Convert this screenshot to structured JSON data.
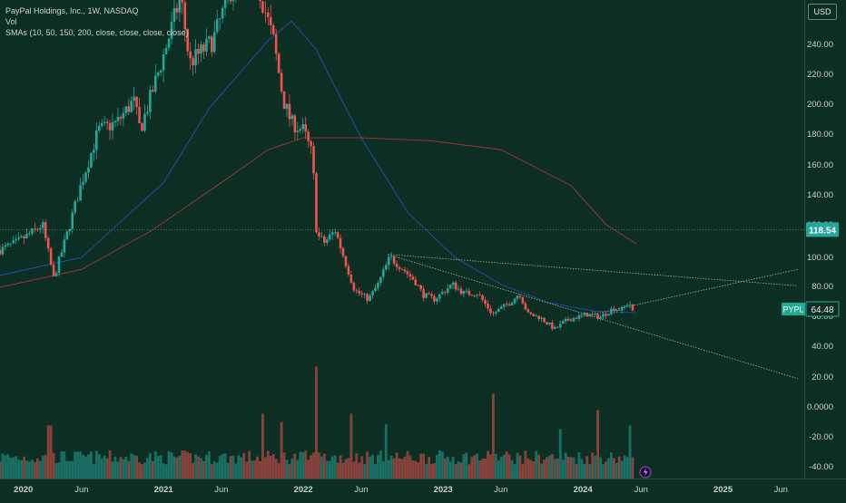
{
  "legend": {
    "title": "PayPal Holdings, Inc., 1W, NASDAQ",
    "vol": "Vol",
    "smas": "SMAs (10, 50, 150, 200, close, close, close, close)"
  },
  "currency": "USD",
  "colors": {
    "background": "#0d2e22",
    "up": "#26a69a",
    "down": "#ef5350",
    "sma_blue": "#2962ff",
    "sma_red": "#f23645",
    "trendline": "#9fb3ad",
    "last_price_bg": "#26a69a",
    "ticker_tag": "#22ab94",
    "text": "#c9d4cf"
  },
  "chart_data": {
    "type": "candlestick",
    "symbol": "PYPL",
    "interval": "1W",
    "last_price": 64.48,
    "marker_price": 118.54,
    "price_axis": {
      "range": [
        -40,
        250
      ],
      "ticks": [
        "240.00",
        "220.00",
        "200.00",
        "180.00",
        "160.00",
        "140.00",
        "120.00",
        "100.00",
        "80.00",
        "60.00",
        "40.00",
        "20.00",
        "0.0000",
        "-20.00",
        "-40.00"
      ]
    },
    "time_axis": {
      "range": [
        "2019-11-01",
        "2025-08-01"
      ],
      "ticks": [
        {
          "label": "2020",
          "date": "2020-01-01"
        },
        {
          "label": "Jun",
          "date": "2020-06-01"
        },
        {
          "label": "2021",
          "date": "2021-01-01"
        },
        {
          "label": "Jun",
          "date": "2021-06-01"
        },
        {
          "label": "2022",
          "date": "2022-01-01"
        },
        {
          "label": "Jun",
          "date": "2022-06-01"
        },
        {
          "label": "2023",
          "date": "2023-01-01"
        },
        {
          "label": "Jun",
          "date": "2023-06-01"
        },
        {
          "label": "2024",
          "date": "2024-01-01"
        },
        {
          "label": "Jun",
          "date": "2024-06-01"
        },
        {
          "label": "2025",
          "date": "2025-01-01"
        },
        {
          "label": "Jun",
          "date": "2025-06-01"
        }
      ]
    },
    "price_keyframes": [
      [
        "2019-11-01",
        105
      ],
      [
        "2019-12-15",
        110
      ],
      [
        "2020-02-01",
        118
      ],
      [
        "2020-02-20",
        122
      ],
      [
        "2020-03-20",
        86
      ],
      [
        "2020-04-20",
        112
      ],
      [
        "2020-06-01",
        150
      ],
      [
        "2020-07-15",
        185
      ],
      [
        "2020-09-01",
        190
      ],
      [
        "2020-10-15",
        205
      ],
      [
        "2020-11-01",
        185
      ],
      [
        "2021-01-01",
        235
      ],
      [
        "2021-02-15",
        275
      ],
      [
        "2021-03-10",
        230
      ],
      [
        "2021-05-10",
        245
      ],
      [
        "2021-07-25",
        300
      ],
      [
        "2021-09-01",
        285
      ],
      [
        "2021-10-15",
        245
      ],
      [
        "2021-11-10",
        205
      ],
      [
        "2021-12-01",
        190
      ],
      [
        "2022-01-01",
        185
      ],
      [
        "2022-01-25",
        168
      ],
      [
        "2022-02-05",
        115
      ],
      [
        "2022-02-25",
        110
      ],
      [
        "2022-03-25",
        118
      ],
      [
        "2022-05-15",
        78
      ],
      [
        "2022-06-20",
        72
      ],
      [
        "2022-07-15",
        82
      ],
      [
        "2022-08-15",
        100
      ],
      [
        "2022-09-15",
        93
      ],
      [
        "2022-10-20",
        84
      ],
      [
        "2022-11-10",
        75
      ],
      [
        "2022-12-10",
        72
      ],
      [
        "2023-01-25",
        82
      ],
      [
        "2023-02-25",
        76
      ],
      [
        "2023-04-01",
        76
      ],
      [
        "2023-05-10",
        62
      ],
      [
        "2023-06-25",
        70
      ],
      [
        "2023-07-20",
        76
      ],
      [
        "2023-08-10",
        62
      ],
      [
        "2023-09-10",
        60
      ],
      [
        "2023-10-20",
        52
      ],
      [
        "2023-11-20",
        58
      ],
      [
        "2024-01-10",
        62
      ],
      [
        "2024-02-15",
        60
      ],
      [
        "2024-03-20",
        66
      ],
      [
        "2024-04-10",
        65
      ],
      [
        "2024-04-30",
        70
      ],
      [
        "2024-05-15",
        64.48
      ]
    ],
    "volume_spikes": [
      [
        "2020-03-10",
        0.45
      ],
      [
        "2021-09-15",
        0.55
      ],
      [
        "2021-11-05",
        0.48
      ],
      [
        "2022-02-05",
        0.95
      ],
      [
        "2022-05-05",
        0.55
      ],
      [
        "2022-08-05",
        0.46
      ],
      [
        "2023-05-10",
        0.72
      ],
      [
        "2023-11-05",
        0.42
      ],
      [
        "2024-02-10",
        0.58
      ],
      [
        "2024-05-05",
        0.45
      ]
    ],
    "smas": [
      {
        "name": "SMA 50",
        "color": "#2962ff",
        "points": [
          [
            "2019-11-01",
            88
          ],
          [
            "2020-06-01",
            100
          ],
          [
            "2021-01-01",
            150
          ],
          [
            "2021-05-01",
            200
          ],
          [
            "2021-10-01",
            245
          ],
          [
            "2021-12-01",
            258
          ],
          [
            "2022-02-01",
            240
          ],
          [
            "2022-06-01",
            180
          ],
          [
            "2022-10-01",
            130
          ],
          [
            "2023-02-01",
            100
          ],
          [
            "2023-06-01",
            82
          ],
          [
            "2023-10-01",
            70
          ],
          [
            "2024-02-01",
            64
          ],
          [
            "2024-05-20",
            63
          ]
        ]
      },
      {
        "name": "SMA 200",
        "color": "#f23645",
        "points": [
          [
            "2019-11-01",
            80
          ],
          [
            "2020-06-01",
            92
          ],
          [
            "2020-12-01",
            118
          ],
          [
            "2021-06-01",
            150
          ],
          [
            "2021-10-01",
            172
          ],
          [
            "2022-01-01",
            180
          ],
          [
            "2022-06-01",
            180
          ],
          [
            "2022-12-01",
            178
          ],
          [
            "2023-06-01",
            172
          ],
          [
            "2023-12-01",
            148
          ],
          [
            "2024-03-01",
            122
          ],
          [
            "2024-05-20",
            109
          ]
        ]
      }
    ],
    "trendlines": [
      {
        "from": [
          "2022-08-10",
          102
        ],
        "to": [
          "2025-07-15",
          19
        ]
      },
      {
        "from": [
          "2022-08-10",
          102
        ],
        "to": [
          "2025-07-15",
          81
        ]
      },
      {
        "from": [
          "2023-11-01",
          57
        ],
        "to": [
          "2025-07-15",
          92
        ]
      }
    ]
  }
}
